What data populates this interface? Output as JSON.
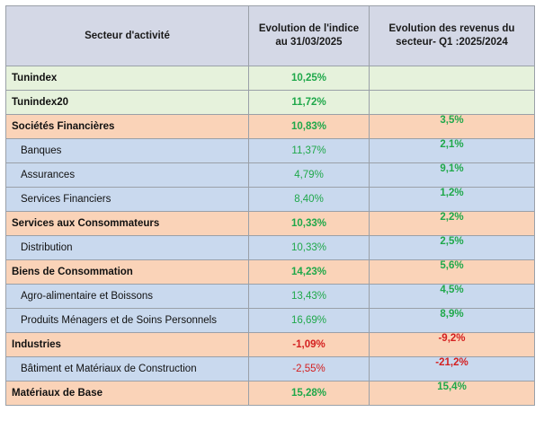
{
  "headers": {
    "sector": "Secteur d'activité",
    "index": "Evolution  de l'indice au 31/03/2025",
    "revenue": "Evolution  des revenus du secteur- Q1 :2025/2024"
  },
  "rows": [
    {
      "name": "Tunindex",
      "index": "10,25%",
      "revenue": "",
      "level": "green",
      "kind": "main",
      "index_sign": "pos",
      "revenue_sign": "pos"
    },
    {
      "name": "Tunindex20",
      "index": "11,72%",
      "revenue": "",
      "level": "green",
      "kind": "main",
      "index_sign": "pos",
      "revenue_sign": "pos"
    },
    {
      "name": "Sociétés Financières",
      "index": "10,83%",
      "revenue": "3,5%",
      "level": "orange",
      "kind": "main",
      "index_sign": "pos",
      "revenue_sign": "pos"
    },
    {
      "name": "Banques",
      "index": "11,37%",
      "revenue": "2,1%",
      "level": "blue",
      "kind": "sub",
      "index_sign": "pos",
      "revenue_sign": "pos"
    },
    {
      "name": "Assurances",
      "index": "4,79%",
      "revenue": "9,1%",
      "level": "blue",
      "kind": "sub",
      "index_sign": "pos",
      "revenue_sign": "pos"
    },
    {
      "name": "Services Financiers",
      "index": "8,40%",
      "revenue": "1,2%",
      "level": "blue",
      "kind": "sub",
      "index_sign": "pos",
      "revenue_sign": "pos"
    },
    {
      "name": "Services aux Consommateurs",
      "index": "10,33%",
      "revenue": "2,2%",
      "level": "orange",
      "kind": "main",
      "index_sign": "pos",
      "revenue_sign": "pos"
    },
    {
      "name": "Distribution",
      "index": "10,33%",
      "revenue": "2,5%",
      "level": "blue",
      "kind": "sub",
      "index_sign": "pos",
      "revenue_sign": "pos"
    },
    {
      "name": "Biens de Consommation",
      "index": "14,23%",
      "revenue": "5,6%",
      "level": "orange",
      "kind": "main",
      "index_sign": "pos",
      "revenue_sign": "pos"
    },
    {
      "name": "Agro-alimentaire  et  Boissons",
      "index": "13,43%",
      "revenue": "4,5%",
      "level": "blue",
      "kind": "sub",
      "index_sign": "pos",
      "revenue_sign": "pos"
    },
    {
      "name": "Produits Ménagers et  de Soins Personnels",
      "index": "16,69%",
      "revenue": "8,9%",
      "level": "blue",
      "kind": "sub",
      "index_sign": "pos",
      "revenue_sign": "pos"
    },
    {
      "name": "Industries",
      "index": "-1,09%",
      "revenue": "-9,2%",
      "level": "orange",
      "kind": "main",
      "index_sign": "neg",
      "revenue_sign": "neg"
    },
    {
      "name": "Bâtiment et  Matériaux de  Construction",
      "index": "-2,55%",
      "revenue": "-21,2%",
      "level": "blue",
      "kind": "sub",
      "index_sign": "neg",
      "revenue_sign": "neg"
    },
    {
      "name": "Matériaux de Base",
      "index": "15,28%",
      "revenue": "15,4%",
      "level": "orange",
      "kind": "main",
      "index_sign": "pos",
      "revenue_sign": "pos"
    }
  ],
  "colors": {
    "positive": "#1fa84a",
    "negative": "#d42020",
    "header_bg": "#d4d8e6",
    "green_row": "#e6f2dc",
    "orange_row": "#fad3b8",
    "blue_row": "#c9d9ee"
  }
}
